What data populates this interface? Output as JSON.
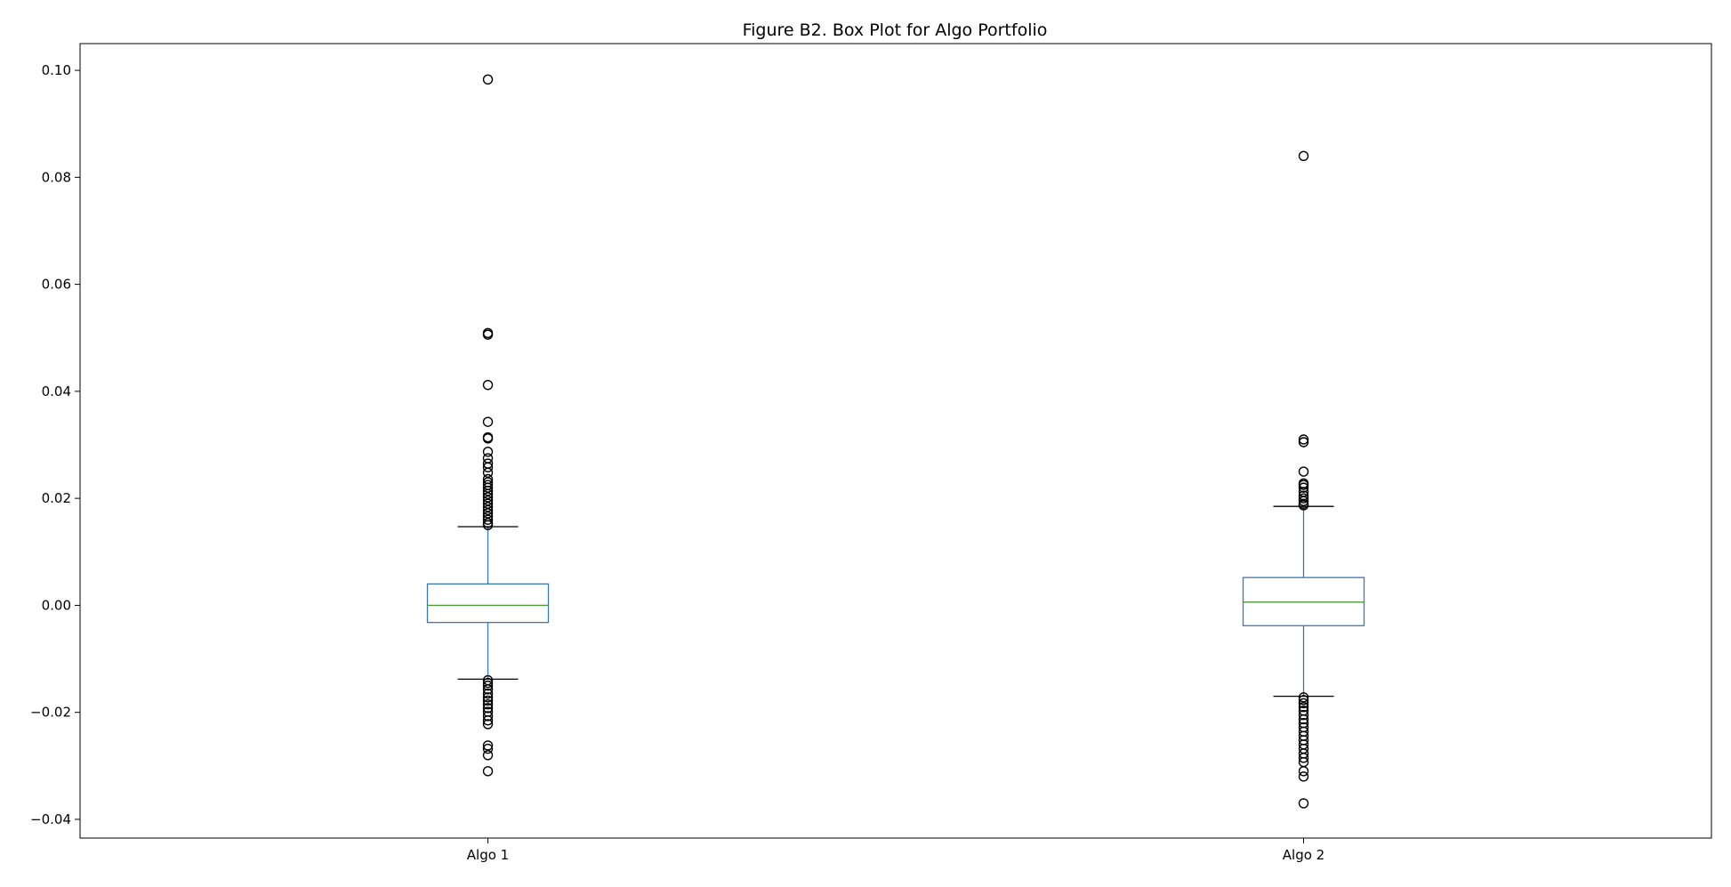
{
  "chart_data": {
    "type": "box",
    "title": "Figure B2. Box Plot for Algo Portfolio",
    "xlabel": "",
    "ylabel": "",
    "ylim": [
      -0.0435,
      0.105
    ],
    "grid": false,
    "y_ticks": [
      {
        "value": 0.1,
        "label": "0.10"
      },
      {
        "value": 0.08,
        "label": "0.08"
      },
      {
        "value": 0.06,
        "label": "0.06"
      },
      {
        "value": 0.04,
        "label": "0.04"
      },
      {
        "value": 0.02,
        "label": "0.02"
      },
      {
        "value": 0.0,
        "label": "0.00"
      },
      {
        "value": -0.02,
        "label": "−0.02"
      },
      {
        "value": -0.04,
        "label": "−0.04"
      }
    ],
    "categories": [
      "Algo 1",
      "Algo 2"
    ],
    "series": [
      {
        "category": "Algo 1",
        "whisker_low": -0.0138,
        "q1": -0.0032,
        "median": 0.0,
        "q3": 0.004,
        "whisker_high": 0.0147,
        "outliers": [
          0.0983,
          0.0509,
          0.0506,
          0.0412,
          0.0343,
          0.0314,
          0.0312,
          0.0287,
          0.0275,
          0.0265,
          0.0258,
          0.0248,
          0.0236,
          0.023,
          0.0225,
          0.022,
          0.0214,
          0.0208,
          0.0202,
          0.0196,
          0.019,
          0.0184,
          0.0178,
          0.0172,
          0.0166,
          0.016,
          0.0154,
          0.015,
          -0.014,
          -0.0145,
          -0.015,
          -0.0157,
          -0.0165,
          -0.0172,
          -0.0178,
          -0.0185,
          -0.0192,
          -0.0199,
          -0.0207,
          -0.0215,
          -0.0222,
          -0.0262,
          -0.0268,
          -0.028,
          -0.031
        ]
      },
      {
        "category": "Algo 2",
        "whisker_low": -0.017,
        "q1": -0.0038,
        "median": 0.0006,
        "q3": 0.0052,
        "whisker_high": 0.0185,
        "outliers": [
          0.084,
          0.031,
          0.0305,
          0.025,
          0.0228,
          0.0225,
          0.022,
          0.0212,
          0.0205,
          0.02,
          0.0195,
          0.019,
          0.0187,
          -0.0172,
          -0.0177,
          -0.0183,
          -0.019,
          -0.0197,
          -0.0205,
          -0.0213,
          -0.022,
          -0.0228,
          -0.0236,
          -0.0244,
          -0.0252,
          -0.026,
          -0.0268,
          -0.0277,
          -0.0285,
          -0.0293,
          -0.031,
          -0.032,
          -0.037
        ]
      }
    ]
  },
  "colors": {
    "box": "#3a77b4",
    "median": "#4c9a35",
    "whisker": "#3a77b4",
    "cap": "#000000",
    "flier": "#000000",
    "axes": "#000000",
    "background": "#ffffff"
  }
}
